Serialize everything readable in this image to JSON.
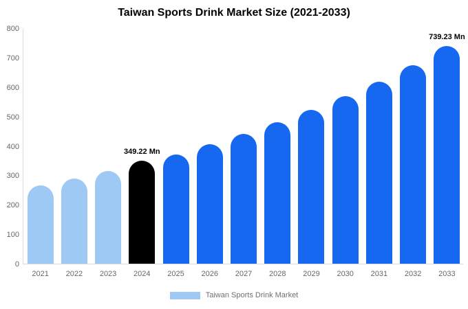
{
  "title": "Taiwan Sports Drink Market Size (2021-2033)",
  "legend": {
    "label": "Taiwan Sports Drink Market",
    "swatch_color": "#9ec9f5"
  },
  "colors": {
    "historical": "#9ec9f5",
    "current_year": "#000000",
    "forecast": "#1668f0",
    "axis_text": "#666666",
    "axis_line": "#d9d9d9"
  },
  "chart_data": {
    "type": "bar",
    "title": "Taiwan Sports Drink Market Size (2021-2033)",
    "xlabel": "",
    "ylabel": "",
    "ylim": [
      0,
      800
    ],
    "y_ticks": [
      0,
      100,
      200,
      300,
      400,
      500,
      600,
      700,
      800
    ],
    "grid": false,
    "legend_position": "bottom",
    "categories": [
      "2021",
      "2022",
      "2023",
      "2024",
      "2025",
      "2026",
      "2027",
      "2028",
      "2029",
      "2030",
      "2031",
      "2032",
      "2033"
    ],
    "values": [
      265,
      290,
      315,
      349.22,
      372,
      405,
      440,
      480,
      522,
      568,
      618,
      675,
      739.23
    ],
    "bar_color_keys": [
      "historical",
      "historical",
      "historical",
      "current_year",
      "forecast",
      "forecast",
      "forecast",
      "forecast",
      "forecast",
      "forecast",
      "forecast",
      "forecast",
      "forecast"
    ],
    "annotations": [
      {
        "category": "2024",
        "text": "349.22 Mn"
      },
      {
        "category": "2033",
        "text": "739.23 Mn"
      }
    ],
    "series_name": "Taiwan Sports Drink Market"
  }
}
